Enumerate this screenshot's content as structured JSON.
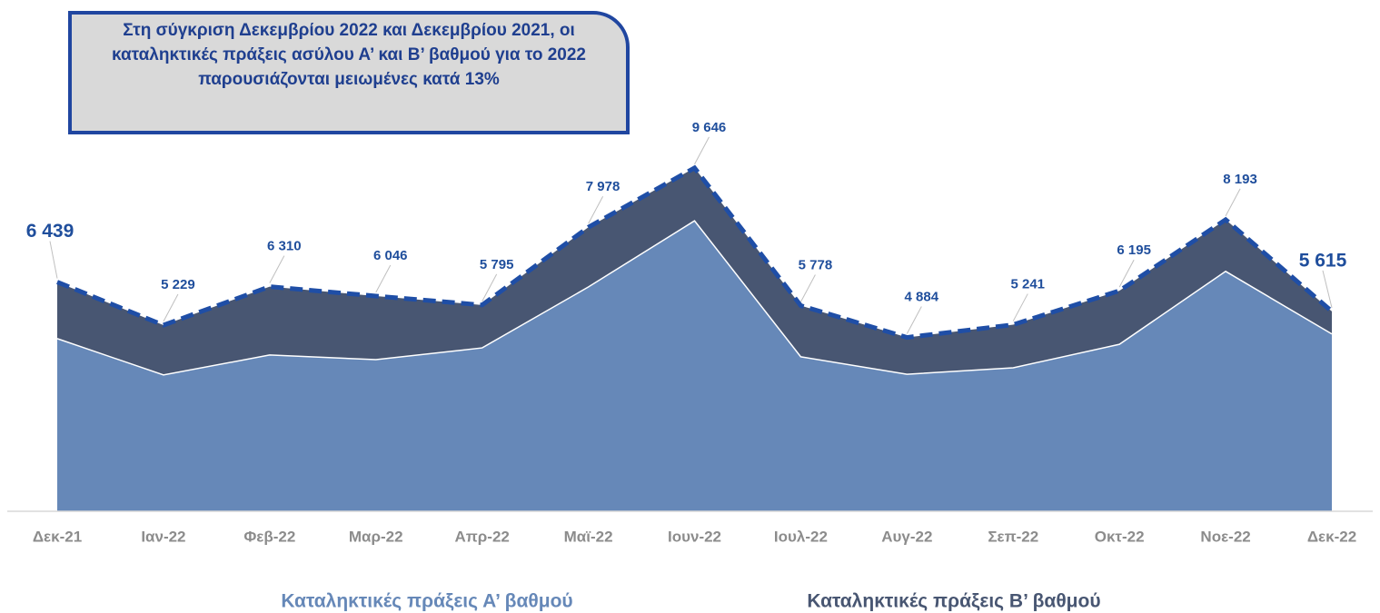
{
  "chart_data": {
    "type": "stacked-area",
    "annotation": "Στη σύγκριση Δεκεμβρίου 2022 και Δεκεμβρίου 2021, οι καταληκτικές πράξεις ασύλου Α’ και Β’ βαθμού για το 2022 παρουσιάζονται μειωμένες κατά 13%",
    "categories": [
      "Δεκ-21",
      "Ιαν-22",
      "Φεβ-22",
      "Μαρ-22",
      "Απρ-22",
      "Μαϊ-22",
      "Ιουν-22",
      "Ιουλ-22",
      "Αυγ-22",
      "Σεπ-22",
      "Οκτ-22",
      "Νοε-22",
      "Δεκ-22"
    ],
    "series": [
      {
        "name": "Καταληκτικές πράξεις Α’ βαθμού",
        "color": "#6688b8",
        "values": [
          4850,
          3830,
          4390,
          4260,
          4590,
          6300,
          8160,
          4340,
          3850,
          4030,
          4690,
          6740,
          4980
        ]
      },
      {
        "name": "Καταληκτικές πράξεις Β’ βαθμού",
        "color": "#485672",
        "values": [
          1589,
          1399,
          1920,
          1786,
          1205,
          1678,
          1486,
          1438,
          1034,
          1211,
          1505,
          1453,
          635
        ]
      }
    ],
    "totals": {
      "color": "#1f4ea6",
      "values": [
        6439,
        5229,
        6310,
        6046,
        5795,
        7978,
        9646,
        5778,
        4884,
        5241,
        6195,
        8193,
        5615
      ],
      "value_labels": [
        "6 439",
        "5 229",
        "6 310",
        "6 046",
        "5 795",
        "7 978",
        "9 646",
        "5 778",
        "4 884",
        "5 241",
        "6 195",
        "8 193",
        "5 615"
      ]
    },
    "ylim": [
      0,
      10000
    ]
  }
}
